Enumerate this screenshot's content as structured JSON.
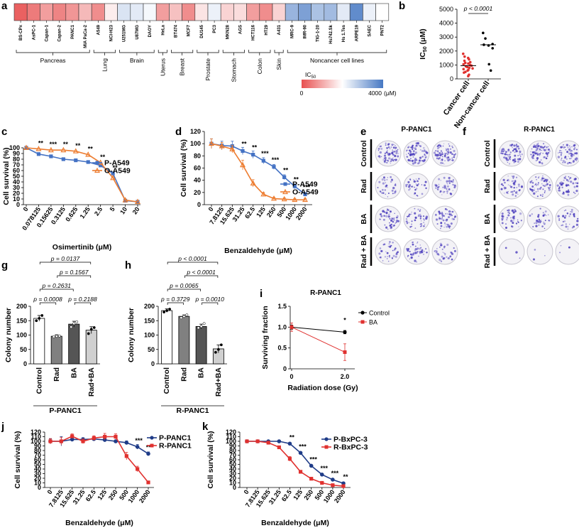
{
  "panel_labels": {
    "a": "a",
    "b": "b",
    "c": "c",
    "d": "d",
    "e": "e",
    "f": "f",
    "g": "g",
    "h": "h",
    "i": "i",
    "j": "j",
    "k": "k"
  },
  "colors": {
    "line_blue": "#4472c4",
    "line_orange": "#ed7d31",
    "dot_red": "#e0312f",
    "dark_navy": "#1f3c88",
    "red": "#e0312f",
    "black": "#000000",
    "colony_purple": "#4b3dbd"
  },
  "chart_data": [
    {
      "id": "a",
      "type": "heatmap",
      "cells": [
        "BS-CPx",
        "AsPC-1",
        "Capan-1",
        "Capan-2",
        "PANC1",
        "MIA PaCa-2",
        "A549",
        "NCI-H23",
        "U251MG",
        "U87MG",
        "DAOY",
        "HeLa",
        "BT474",
        "MCF7",
        "DU145",
        "PC3",
        "MKN28",
        "AGS",
        "HCT116",
        "HT29",
        "A431",
        "MRC-9",
        "IMR-90",
        "TIG-1-20",
        "Hs742.Sk",
        "Hs 1.Tes",
        "ARPE19",
        "SAEC",
        "PNT2"
      ],
      "values": [
        200,
        500,
        900,
        600,
        800,
        1200,
        700,
        1800,
        2400,
        2300,
        2100,
        900,
        1300,
        700,
        1700,
        2200,
        1500,
        1600,
        900,
        700,
        1500,
        3100,
        3400,
        2900,
        3000,
        2300,
        3700,
        2200,
        2000
      ],
      "groups": [
        {
          "label": "Pancreas",
          "from": 0,
          "to": 5
        },
        {
          "label": "Lung",
          "from": 6,
          "to": 7
        },
        {
          "label": "Brain",
          "from": 8,
          "to": 10
        },
        {
          "label": "Uterus",
          "from": 11,
          "to": 11
        },
        {
          "label": "Breast",
          "from": 12,
          "to": 13
        },
        {
          "label": "Prostate",
          "from": 14,
          "to": 15
        },
        {
          "label": "Stomach",
          "from": 16,
          "to": 17
        },
        {
          "label": "Colon",
          "from": 18,
          "to": 19
        },
        {
          "label": "Skin",
          "from": 20,
          "to": 20
        },
        {
          "label": "Noncancer cell lines",
          "from": 21,
          "to": 28
        }
      ],
      "colorbar": {
        "label": "IC",
        "sub": "50",
        "min": "0",
        "max": "4000",
        "unit": "(μM)"
      }
    },
    {
      "id": "b",
      "type": "scatter",
      "ylabel": "IC",
      "ylabel_sub": "50",
      "ylabel_unit": "(μM)",
      "yticks": [
        "0",
        "1000",
        "2000",
        "3000",
        "4000",
        "5000"
      ],
      "ylim": [
        0,
        5000
      ],
      "categories": [
        "Cancer cell",
        "Non-cancer cell"
      ],
      "pvalue": "p < 0.0001",
      "cancer": [
        200,
        300,
        450,
        500,
        600,
        650,
        700,
        750,
        800,
        850,
        900,
        950,
        1000,
        1050,
        1100,
        1150,
        1200,
        1300,
        1400,
        1500,
        1600,
        1800
      ],
      "noncancer": [
        600,
        1050,
        2200,
        2400,
        2450,
        2500,
        2900,
        3300
      ],
      "medians": [
        950,
        2450
      ]
    },
    {
      "id": "c",
      "type": "line",
      "ylabel": "Cell survival (%)",
      "xlabel": "Osimertinib (μM)",
      "yticks": [
        "0",
        "10",
        "20",
        "30",
        "40",
        "50",
        "60",
        "70",
        "80",
        "90",
        "100"
      ],
      "ylim": [
        0,
        100
      ],
      "categories": [
        "0",
        "0.078125",
        "0.15625",
        "0.3125",
        "0.625",
        "1.25",
        "2.5",
        "5",
        "10",
        "20"
      ],
      "series": [
        {
          "name": "P-A549",
          "values": [
            100,
            89,
            85,
            80,
            78,
            75,
            69,
            55,
            7,
            5
          ]
        },
        {
          "name": "O-A549",
          "values": [
            100,
            98,
            96,
            96,
            94,
            88,
            74,
            47,
            8,
            5
          ]
        }
      ],
      "stars": [
        "",
        "**",
        "***",
        "**",
        "**",
        "**",
        "**",
        "**",
        "",
        ""
      ]
    },
    {
      "id": "d",
      "type": "line",
      "ylabel": "Cell survival (%)",
      "xlabel": "Benzaldehyde (μM)",
      "yticks": [
        "0",
        "20",
        "40",
        "60",
        "80",
        "100",
        "120"
      ],
      "ylim": [
        0,
        120
      ],
      "categories": [
        "0",
        "7.8125",
        "15.625",
        "31.25",
        "62.5",
        "125",
        "250",
        "500",
        "1000",
        "2000"
      ],
      "series": [
        {
          "name": "P-A549",
          "values": [
            100,
            97,
            96,
            88,
            82,
            72,
            62,
            45,
            30,
            17
          ]
        },
        {
          "name": "O-A549",
          "values": [
            100,
            96,
            91,
            65,
            35,
            17,
            10,
            9,
            8,
            8
          ]
        }
      ],
      "stars": [
        "",
        "",
        "",
        "**",
        "**",
        "***",
        "***",
        "**",
        "**",
        "***"
      ]
    },
    {
      "id": "e",
      "type": "table",
      "title": "P-PANC1",
      "rows": [
        "Control",
        "Rad",
        "BA",
        "Rad + BA"
      ],
      "density": [
        [
          0.9,
          0.9,
          0.9
        ],
        [
          0.4,
          0.4,
          0.5
        ],
        [
          0.6,
          0.5,
          0.6
        ],
        [
          0.4,
          0.5,
          0.4
        ]
      ]
    },
    {
      "id": "f",
      "type": "table",
      "title": "R-PANC1",
      "rows": [
        "Control",
        "Rad",
        "BA",
        "Rad + BA"
      ],
      "density": [
        [
          0.8,
          0.8,
          0.8
        ],
        [
          0.6,
          0.7,
          0.6
        ],
        [
          0.4,
          0.4,
          0.4
        ],
        [
          0.03,
          0.03,
          0.03
        ]
      ]
    },
    {
      "id": "g",
      "type": "bar",
      "title": "P-PANC1",
      "ylabel": "Colony number",
      "yticks": [
        "0",
        "50",
        "100",
        "150",
        "200"
      ],
      "ylim": [
        0,
        200
      ],
      "categories": [
        "Control",
        "Rad",
        "BA",
        "Rad+BA"
      ],
      "values": [
        158,
        96,
        138,
        117
      ],
      "errors": [
        10,
        5,
        10,
        12
      ],
      "points": [
        [
          150,
          158,
          168
        ],
        [
          94,
          96,
          97
        ],
        [
          128,
          140,
          146
        ],
        [
          105,
          120,
          126
        ]
      ],
      "fills": [
        "#ffffff",
        "#808080",
        "#555555",
        "#d0d0d0"
      ],
      "brackets": [
        {
          "from": 0,
          "to": 1,
          "label": "p = 0.0008"
        },
        {
          "from": 2,
          "to": 3,
          "label": "p = 0.2188"
        },
        {
          "from": 0,
          "to": 2,
          "label": "p = 0.2631"
        },
        {
          "from": 1,
          "to": 3,
          "label": "p = 0.1567"
        },
        {
          "from": 0,
          "to": 3,
          "label": "p = 0.0137"
        }
      ]
    },
    {
      "id": "h",
      "type": "bar",
      "title": "R-PANC1",
      "ylabel": "Colony number",
      "yticks": [
        "0",
        "50",
        "100",
        "150",
        "200"
      ],
      "ylim": [
        0,
        200
      ],
      "categories": [
        "Control",
        "Rad",
        "BA",
        "Rad+BA"
      ],
      "values": [
        185,
        165,
        130,
        52
      ],
      "errors": [
        6,
        5,
        8,
        14
      ],
      "points": [
        [
          180,
          185,
          190
        ],
        [
          160,
          165,
          170
        ],
        [
          125,
          130,
          140
        ],
        [
          40,
          50,
          66
        ]
      ],
      "fills": [
        "#ffffff",
        "#808080",
        "#555555",
        "#d0d0d0"
      ],
      "brackets": [
        {
          "from": 0,
          "to": 1,
          "label": "p = 0.3729"
        },
        {
          "from": 2,
          "to": 3,
          "label": "p = 0.0010"
        },
        {
          "from": 0,
          "to": 2,
          "label": "p = 0.0065"
        },
        {
          "from": 1,
          "to": 3,
          "label": "p < 0.0001"
        },
        {
          "from": 0,
          "to": 3,
          "label": "p < 0.0001"
        }
      ]
    },
    {
      "id": "i",
      "type": "line",
      "title": "R-PANC1",
      "ylabel": "Surviving fraction",
      "xlabel": "Radiation dose (Gy)",
      "yticks": [
        "0",
        "0.5",
        "1.0",
        "1.5"
      ],
      "ylim": [
        0,
        1.5
      ],
      "x": [
        0,
        2
      ],
      "xticks": [
        "0",
        "2.0"
      ],
      "series": [
        {
          "name": "Control",
          "values": [
            1.0,
            0.88
          ],
          "errors": [
            0.05,
            0.04
          ]
        },
        {
          "name": "BA",
          "values": [
            1.0,
            0.4
          ],
          "errors": [
            0.1,
            0.2
          ]
        }
      ],
      "stars": [
        "",
        "*"
      ]
    },
    {
      "id": "j",
      "type": "line",
      "ylabel": "Cell survival (%)",
      "xlabel": "Benzaldehyde (μM)",
      "yticks": [
        "0",
        "10",
        "20",
        "30",
        "40",
        "50",
        "60",
        "70",
        "80",
        "90",
        "100",
        "110",
        "120"
      ],
      "ylim": [
        0,
        120
      ],
      "categories": [
        "0",
        "7.8125",
        "15.625",
        "31.25",
        "62.5",
        "125",
        "250",
        "500",
        "1000",
        "2000"
      ],
      "series": [
        {
          "name": "P-PANC1",
          "values": [
            100,
            100,
            104,
            104,
            105,
            103,
            100,
            97,
            88,
            73
          ]
        },
        {
          "name": "R-PANC1",
          "values": [
            100,
            100,
            111,
            100,
            107,
            110,
            110,
            68,
            40,
            11
          ]
        }
      ],
      "stars": [
        "",
        "",
        "",
        "",
        "",
        "",
        "",
        "",
        "***",
        "***"
      ]
    },
    {
      "id": "k",
      "type": "line",
      "ylabel": "Cell survival (%)",
      "xlabel": "Benzaldehyde (μM)",
      "yticks": [
        "0",
        "10",
        "20",
        "30",
        "40",
        "50",
        "60",
        "70",
        "80",
        "90",
        "100",
        "110",
        "120"
      ],
      "ylim": [
        0,
        120
      ],
      "categories": [
        "0",
        "7.8125",
        "15.625",
        "31.25",
        "62.5",
        "125",
        "250",
        "500",
        "1000",
        "2000"
      ],
      "series": [
        {
          "name": "P-BxPC-3",
          "values": [
            100,
            100,
            100,
            100,
            95,
            75,
            47,
            28,
            17,
            9
          ]
        },
        {
          "name": "R-BxPC-3",
          "values": [
            100,
            100,
            97,
            87,
            62,
            34,
            19,
            10,
            5,
            3
          ]
        }
      ],
      "stars": [
        "",
        "",
        "",
        "",
        "**",
        "***",
        "***",
        "***",
        "***",
        "**"
      ]
    }
  ]
}
